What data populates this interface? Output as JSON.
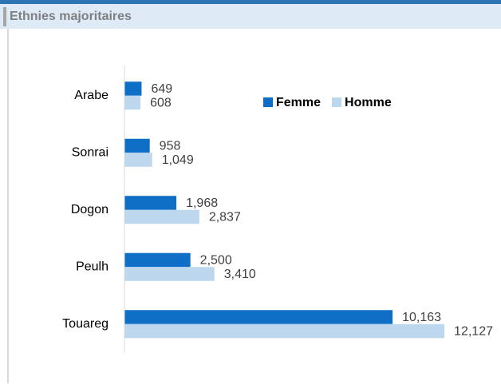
{
  "chart_data": {
    "type": "bar",
    "orientation": "horizontal",
    "title": "Ethnies majoritaires",
    "categories": [
      "Arabe",
      "Sonrai",
      "Dogon",
      "Peulh",
      "Touareg"
    ],
    "series": [
      {
        "name": "Femme",
        "color": "#0f6fc6",
        "values": [
          649,
          958,
          1968,
          2500,
          10163
        ],
        "value_labels": [
          "649",
          "958",
          "1,968",
          "2,500",
          "10,163"
        ]
      },
      {
        "name": "Homme",
        "color": "#bdd7ee",
        "values": [
          608,
          1049,
          2837,
          3410,
          12127
        ],
        "value_labels": [
          "608",
          "1,049",
          "2,837",
          "3,410",
          "12,127"
        ]
      }
    ],
    "xlim": [
      0,
      14000
    ],
    "legend": "top-right"
  }
}
